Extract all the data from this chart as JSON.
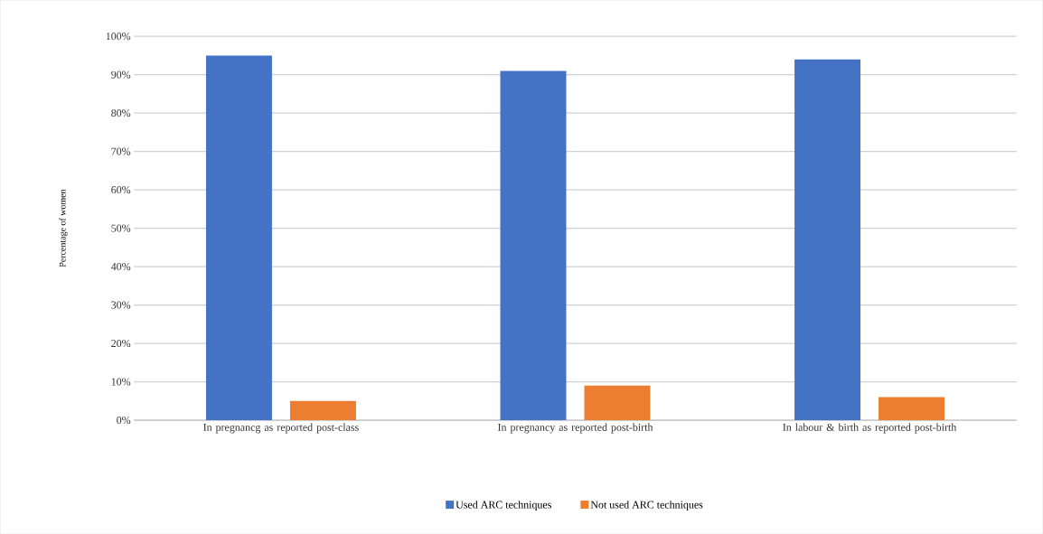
{
  "chart_data": {
    "type": "bar",
    "ylabel": "Percentage of women",
    "categories": [
      "In pregnancg as reported post-class",
      "In pregnancy as reported post-birth",
      "In labour & birth as reported post-birth"
    ],
    "series": [
      {
        "name": "Used ARC techniques",
        "color": "#4472c4",
        "values": [
          95,
          91,
          94
        ]
      },
      {
        "name": "Not used ARC techniques",
        "color": "#ed7d31",
        "values": [
          5,
          9,
          6
        ]
      }
    ],
    "ylim": [
      0,
      100
    ],
    "yticks": [
      {
        "value": 0,
        "label": "0%"
      },
      {
        "value": 10,
        "label": "10%"
      },
      {
        "value": 20,
        "label": "20%"
      },
      {
        "value": 30,
        "label": "30%"
      },
      {
        "value": 40,
        "label": "40%"
      },
      {
        "value": 50,
        "label": "50%"
      },
      {
        "value": 60,
        "label": "60%"
      },
      {
        "value": 70,
        "label": "70%"
      },
      {
        "value": 80,
        "label": "80%"
      },
      {
        "value": 90,
        "label": "90%"
      },
      {
        "value": 100,
        "label": "100%"
      }
    ],
    "grid": "y",
    "legend": "bottom"
  }
}
